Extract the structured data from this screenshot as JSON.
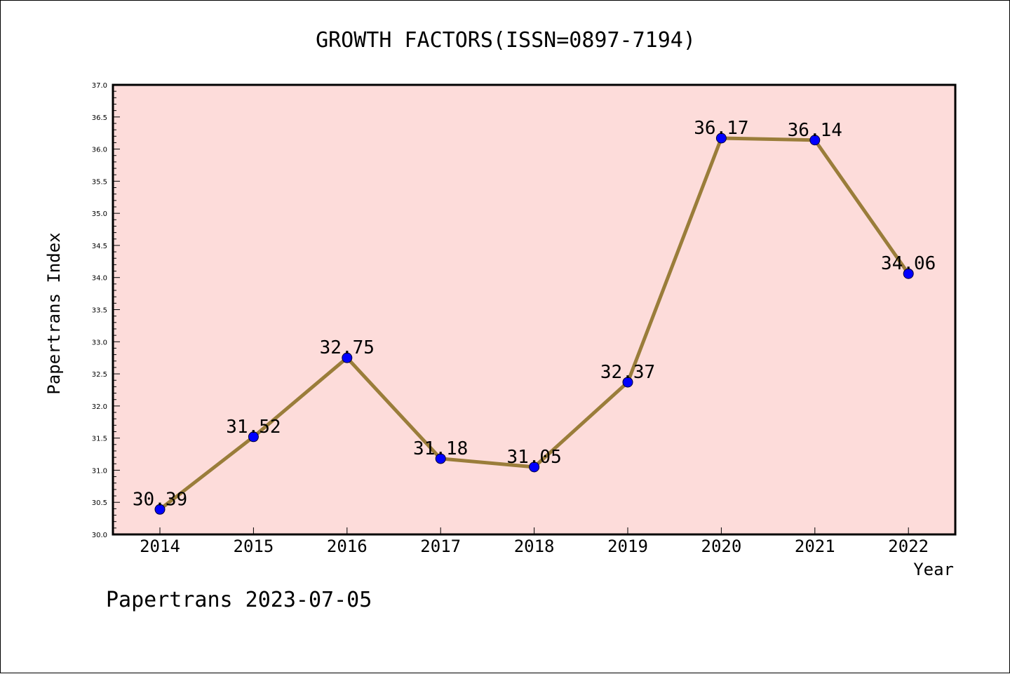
{
  "chart_data": {
    "type": "line",
    "title": "GROWTH FACTORS(ISSN=0897-7194)",
    "xlabel": "Year",
    "ylabel": "Papertrans Index",
    "categories": [
      "2014",
      "2015",
      "2016",
      "2017",
      "2018",
      "2019",
      "2020",
      "2021",
      "2022"
    ],
    "values": [
      30.39,
      31.52,
      32.75,
      31.18,
      31.05,
      32.37,
      36.17,
      36.14,
      34.06
    ],
    "data_labels": [
      "30.39",
      "31.52",
      "32.75",
      "31.18",
      "31.05",
      "32.37",
      "36.17",
      "36.14",
      "34.06"
    ],
    "ylim": [
      30.0,
      37.0
    ],
    "yticks": [
      "30.0",
      "30.5",
      "31.0",
      "31.5",
      "32.0",
      "32.5",
      "33.0",
      "33.5",
      "34.0",
      "34.5",
      "35.0",
      "35.5",
      "36.0",
      "36.5",
      "37.0"
    ],
    "grid": false,
    "plot_background": "#fddcda",
    "line_color": "#9a7d3a",
    "marker_color": "#0000ff"
  },
  "footer": "Papertrans 2023-07-05"
}
